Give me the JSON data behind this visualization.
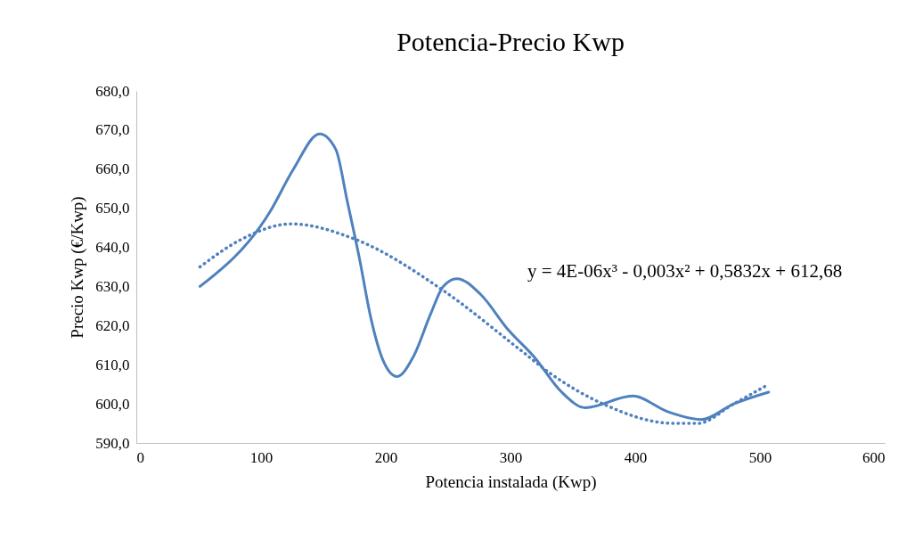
{
  "chart_data": {
    "type": "line",
    "title": "Potencia-Precio Kwp",
    "xlabel": "Potencia instalada (Kwp)",
    "ylabel": "Precio Kwp (€/Kwp)",
    "annotations": [
      "y = 4E-06x³ - 0,003x² + 0,5832x + 612,68"
    ],
    "xlim": [
      0,
      600
    ],
    "xticks": [
      0,
      100,
      200,
      300,
      400,
      500,
      600
    ],
    "ylim": [
      590,
      680
    ],
    "yticks": [
      {
        "value": 590,
        "label": "590,0"
      },
      {
        "value": 600,
        "label": "600,0"
      },
      {
        "value": 610,
        "label": "610,0"
      },
      {
        "value": 620,
        "label": "620,0"
      },
      {
        "value": 630,
        "label": "630,0"
      },
      {
        "value": 640,
        "label": "640,0"
      },
      {
        "value": 650,
        "label": "650,0"
      },
      {
        "value": 660,
        "label": "660,0"
      },
      {
        "value": 670,
        "label": "670,0"
      },
      {
        "value": 680,
        "label": "680,0"
      }
    ],
    "grid": false,
    "series": [
      {
        "color": "#4f81bd",
        "line_style": "solid",
        "x": [
          51,
          107,
          126,
          147,
          160,
          169,
          179,
          188,
          198,
          209,
          222,
          236,
          246,
          257,
          276,
          298,
          319,
          341,
          360,
          398,
          426,
          453,
          479,
          507
        ],
        "values": [
          630,
          649,
          660,
          669,
          665,
          652,
          637,
          622,
          611,
          607,
          612,
          623,
          630,
          632,
          628,
          619,
          612,
          603,
          599,
          602,
          598,
          596,
          600,
          603
        ]
      },
      {
        "color": "#4f81bd",
        "line_style": "dotted",
        "x": [
          51,
          84,
          124,
          176,
          246,
          307,
          331,
          374,
          431,
          450,
          479,
          507
        ],
        "values": [
          635,
          642,
          646,
          642,
          629,
          614,
          608,
          600,
          595,
          595,
          600,
          605
        ]
      }
    ]
  }
}
